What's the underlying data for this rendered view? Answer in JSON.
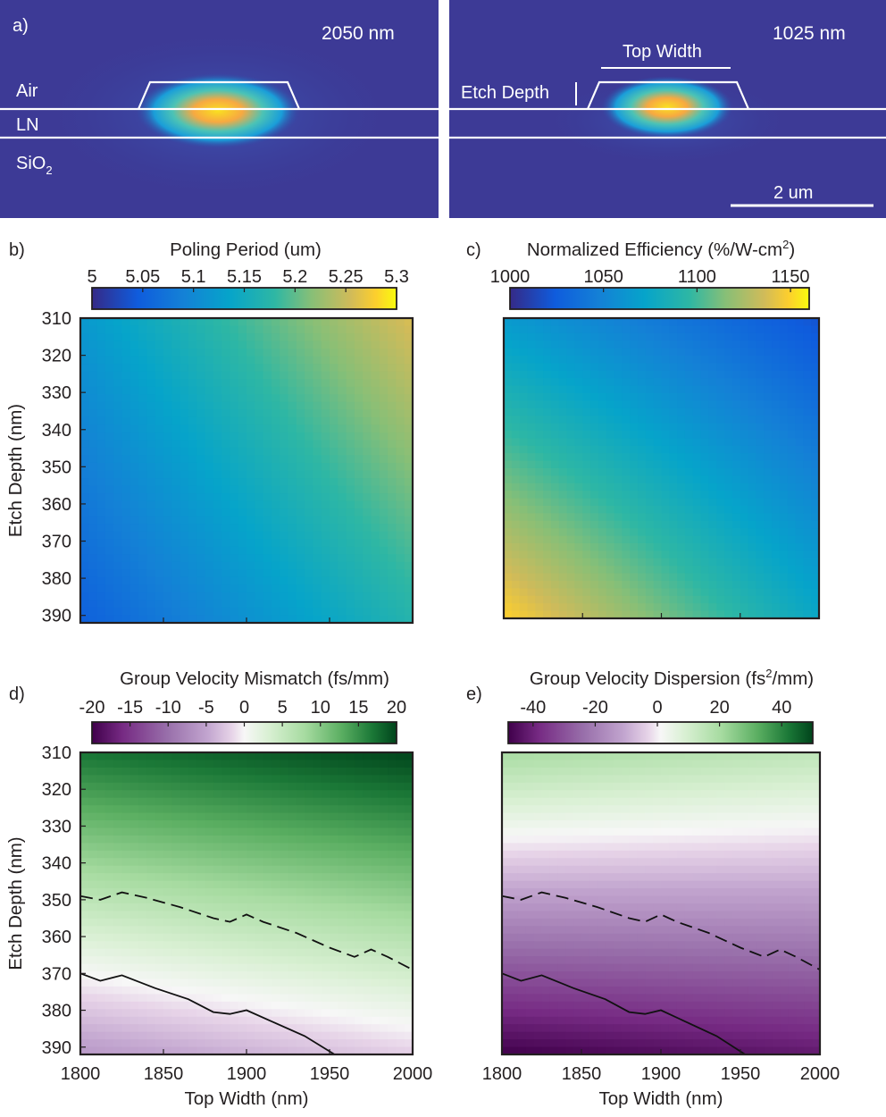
{
  "figure": {
    "panel_a": {
      "label": "a)",
      "left": {
        "wavelength": "2050 nm",
        "layers": [
          "Air",
          "LN",
          "SiO",
          "2"
        ]
      },
      "right": {
        "wavelength": "1025 nm",
        "top_width_label": "Top Width",
        "etch_depth_label": "Etch Depth",
        "scalebar": "2 um"
      }
    }
  },
  "chart_data": [
    {
      "type": "heatmap",
      "panel": "b)",
      "title": "Poling Period (um)",
      "colorbar_ticks": [
        "5",
        "5.05",
        "5.1",
        "5.15",
        "5.2",
        "5.25",
        "5.3"
      ],
      "colorbar_range": [
        5.0,
        5.3
      ],
      "colormap": "parula",
      "x": {
        "label": "",
        "range": [
          1800,
          2000
        ],
        "ticks": []
      },
      "y": {
        "label": "Etch Depth (nm)",
        "range": [
          310,
          392
        ],
        "ticks": [
          "310",
          "320",
          "330",
          "340",
          "350",
          "360",
          "370",
          "380",
          "390"
        ],
        "inverted": true
      },
      "surface": {
        "x": [
          1800,
          2000
        ],
        "y": [
          310,
          392
        ],
        "z": [
          [
            5.12,
            5.26
          ],
          [
            5.05,
            5.17
          ]
        ]
      }
    },
    {
      "type": "heatmap",
      "panel": "c)",
      "title": "Normalized Efficiency (%/W-cm",
      "title_sup": "2",
      "title_end": ")",
      "colorbar_ticks": [
        "1000",
        "1050",
        "1100",
        "1150"
      ],
      "colorbar_range": [
        1000,
        1160
      ],
      "colormap": "parula",
      "x": {
        "label": "",
        "range": [
          1800,
          2000
        ],
        "ticks": []
      },
      "y": {
        "label": "",
        "range": [
          310,
          392
        ],
        "ticks": [],
        "inverted": true
      },
      "surface": {
        "x": [
          1800,
          2000
        ],
        "y": [
          310,
          392
        ],
        "z": [
          [
            1065,
            1020
          ],
          [
            1150,
            1075
          ]
        ]
      }
    },
    {
      "type": "heatmap",
      "panel": "d)",
      "title": "Group Velocity Mismatch (fs/mm)",
      "colorbar_ticks": [
        "-20",
        "-15",
        "-10",
        "-5",
        "0",
        "5",
        "10",
        "15",
        "20"
      ],
      "colorbar_range": [
        -20,
        20
      ],
      "colormap": "PRGn",
      "x": {
        "label": "Top Width (nm)",
        "range": [
          1800,
          2000
        ],
        "ticks": [
          "1800",
          "1850",
          "1900",
          "1950",
          "2000"
        ]
      },
      "y": {
        "label": "Etch Depth (nm)",
        "range": [
          310,
          392
        ],
        "ticks": [
          "310",
          "320",
          "330",
          "340",
          "350",
          "360",
          "370",
          "380",
          "390"
        ],
        "inverted": true
      },
      "surface": {
        "x": [
          1800,
          2000
        ],
        "y": [
          310,
          392
        ],
        "z": [
          [
            17,
            20
          ],
          [
            -6,
            -2
          ]
        ]
      },
      "contours": [
        {
          "style": "dashed",
          "x": [
            1800,
            1812,
            1825,
            1840,
            1860,
            1880,
            1890,
            1900,
            1910,
            1930,
            1950,
            1965,
            1975,
            1985,
            2000
          ],
          "y": [
            349,
            350,
            348,
            349.5,
            352,
            355,
            356,
            354,
            356,
            359,
            363,
            365.5,
            363.5,
            365.5,
            369
          ]
        },
        {
          "style": "solid",
          "x": [
            1800,
            1812,
            1825,
            1845,
            1865,
            1880,
            1890,
            1900,
            1915,
            1935,
            1953
          ],
          "y": [
            370,
            372,
            370.5,
            374,
            377,
            380.5,
            381,
            380,
            383,
            387,
            392
          ]
        }
      ]
    },
    {
      "type": "heatmap",
      "panel": "e)",
      "title": "Group Velocity Dispersion (fs",
      "title_sup": "2",
      "title_end": "/mm)",
      "colorbar_ticks": [
        "-40",
        "-20",
        "0",
        "20",
        "40"
      ],
      "colorbar_range": [
        -48,
        50
      ],
      "colormap": "PRGn",
      "x": {
        "label": "Top Width (nm)",
        "range": [
          1800,
          2000
        ],
        "ticks": [
          "1800",
          "1850",
          "1900",
          "1950",
          "2000"
        ]
      },
      "y": {
        "label": "",
        "range": [
          310,
          392
        ],
        "ticks": [],
        "inverted": true
      },
      "surface": {
        "x": [
          1800,
          2000
        ],
        "y": [
          310,
          392
        ],
        "z": [
          [
            20,
            15
          ],
          [
            -48,
            -42
          ]
        ]
      },
      "contours": [
        {
          "style": "dashed",
          "x": [
            1800,
            1812,
            1825,
            1840,
            1860,
            1880,
            1890,
            1900,
            1910,
            1930,
            1950,
            1965,
            1975,
            1985,
            2000
          ],
          "y": [
            349,
            350,
            348,
            349.5,
            352,
            355,
            356,
            354,
            356,
            359,
            363,
            365.5,
            363.5,
            365.5,
            369
          ]
        },
        {
          "style": "solid",
          "x": [
            1800,
            1812,
            1825,
            1845,
            1865,
            1880,
            1890,
            1900,
            1915,
            1935,
            1953
          ],
          "y": [
            370,
            372,
            370.5,
            374,
            377,
            380.5,
            381,
            380,
            383,
            387,
            392
          ]
        }
      ]
    }
  ]
}
